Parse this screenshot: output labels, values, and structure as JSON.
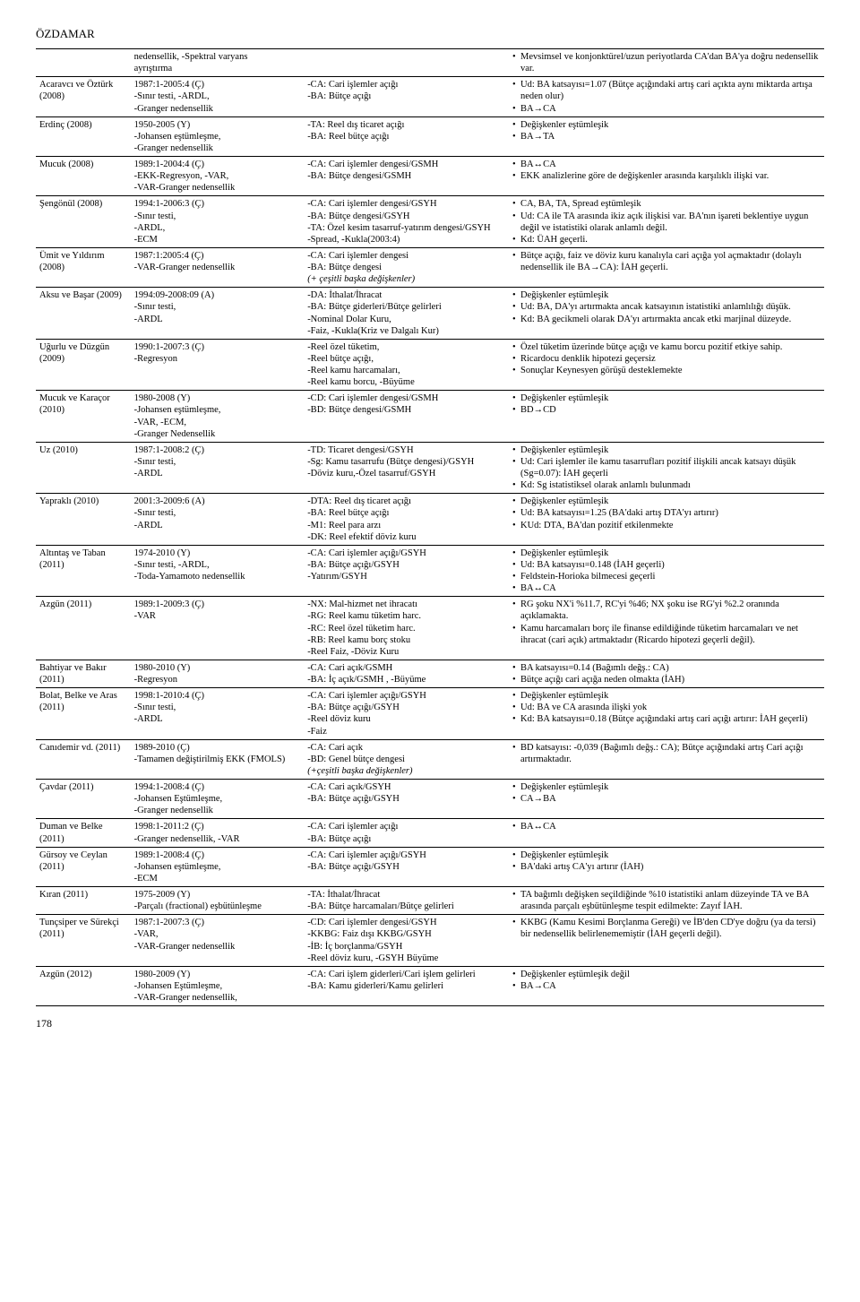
{
  "page": {
    "header": "ÖZDAMAR",
    "footer": "178"
  },
  "table": {
    "columns": {
      "author_w": "12%",
      "method_w": "22%",
      "vars_w": "26%",
      "find_w": "40%"
    },
    "rows": [
      {
        "author": "",
        "method": [
          "nedensellik, -Spektral varyans",
          "ayrıştırma"
        ],
        "vars": [],
        "findings": [
          "Mevsimsel ve konjonktürel/uzun periyotlarda CA'dan BA'ya doğru nedensellik var."
        ]
      },
      {
        "author": "Acaravcı ve Öztürk (2008)",
        "method": [
          "1987:1-2005:4 (Ç)",
          "-Sınır testi, -ARDL,",
          "-Granger nedensellik"
        ],
        "vars": [
          "-CA: Cari işlemler açığı",
          "-BA: Bütçe açığı"
        ],
        "findings": [
          "Ud: BA katsayısı=1.07 (Bütçe açığındaki artış cari açıkta aynı miktarda artışa neden olur)",
          "BA→CA"
        ]
      },
      {
        "author": "Erdinç (2008)",
        "method": [
          "1950-2005 (Y)",
          "-Johansen eştümleşme,",
          "-Granger nedensellik"
        ],
        "vars": [
          "-TA: Reel dış ticaret açığı",
          "-BA: Reel bütçe açığı"
        ],
        "findings": [
          "Değişkenler eştümleşik",
          "BA→TA"
        ]
      },
      {
        "author": "Mucuk (2008)",
        "method": [
          "1989:1-2004:4 (Ç)",
          "-EKK-Regresyon, -VAR,",
          "-VAR-Granger nedensellik"
        ],
        "vars": [
          "-CA: Cari işlemler dengesi/GSMH",
          "-BA: Bütçe dengesi/GSMH"
        ],
        "findings": [
          "BA↔CA",
          "EKK analizlerine göre de değişkenler arasında karşılıklı ilişki var."
        ]
      },
      {
        "author": "Şengönül (2008)",
        "method": [
          "1994:1-2006:3 (Ç)",
          "-Sınır testi,",
          "-ARDL,",
          "-ECM"
        ],
        "vars": [
          "-CA: Cari işlemler dengesi/GSYH",
          "-BA: Bütçe dengesi/GSYH",
          "-TA: Özel kesim tasarruf-yatırım dengesi/GSYH",
          "-Spread, -Kukla(2003:4)"
        ],
        "findings": [
          "CA, BA, TA, Spread eştümleşik",
          "Ud: CA ile TA arasında ikiz açık ilişkisi var. BA'nın işareti beklentiye uygun değil ve istatistiki olarak anlamlı değil.",
          "Kd: ÜAH geçerli."
        ]
      },
      {
        "author": "Ümit ve Yıldırım (2008)",
        "method": [
          "1987:1:2005:4 (Ç)",
          "-VAR-Granger nedensellik"
        ],
        "vars": [
          "-CA: Cari işlemler dengesi",
          "-BA: Bütçe dengesi",
          "(+ çeşitli başka değişkenler)"
        ],
        "findings": [
          "Bütçe açığı, faiz ve döviz kuru kanalıyla cari açığa yol açmaktadır (dolaylı nedensellik ile BA→CA): İAH geçerli."
        ]
      },
      {
        "author": "Aksu ve Başar (2009)",
        "method": [
          "1994:09-2008:09 (A)",
          "-Sınır testi,",
          "-ARDL"
        ],
        "vars": [
          "-DA: İthalat/İhracat",
          "-BA: Bütçe giderleri/Bütçe gelirleri",
          "-Nominal Dolar Kuru,",
          "-Faiz, -Kukla(Kriz ve Dalgalı Kur)"
        ],
        "findings": [
          "Değişkenler eştümleşik",
          "Ud: BA, DA'yı artırmakta ancak katsayının istatistiki anlamlılığı düşük.",
          "Kd: BA gecikmeli olarak DA'yı artırmakta ancak etki marjinal düzeyde."
        ]
      },
      {
        "author": "Uğurlu ve Düzgün (2009)",
        "method": [
          "1990:1-2007:3 (Ç)",
          "-Regresyon"
        ],
        "vars": [
          "-Reel özel tüketim,",
          "-Reel bütçe açığı,",
          "-Reel kamu harcamaları,",
          "-Reel kamu borcu, -Büyüme"
        ],
        "findings": [
          "Özel tüketim üzerinde bütçe açığı ve kamu borcu pozitif etkiye sahip.",
          "Ricardocu denklik hipotezi geçersiz",
          "Sonuçlar Keynesyen görüşü desteklemekte"
        ]
      },
      {
        "author": "Mucuk ve Karaçor (2010)",
        "method": [
          "1980-2008 (Y)",
          "-Johansen eştümleşme,",
          "-VAR, -ECM,",
          "-Granger Nedensellik"
        ],
        "vars": [
          "-CD: Cari işlemler dengesi/GSMH",
          "-BD: Bütçe dengesi/GSMH"
        ],
        "findings": [
          "Değişkenler eştümleşik",
          "BD→CD"
        ]
      },
      {
        "author": "Uz (2010)",
        "method": [
          "1987:1-2008:2 (Ç)",
          "-Sınır testi,",
          "-ARDL"
        ],
        "vars": [
          "-TD: Ticaret dengesi/GSYH",
          "-Sg: Kamu tasarrufu (Bütçe dengesi)/GSYH",
          "-Döviz kuru,-Özel tasarruf/GSYH"
        ],
        "findings": [
          "Değişkenler eştümleşik",
          "Ud: Cari işlemler ile kamu tasarrufları pozitif ilişkili ancak katsayı düşük (Sg=0.07): İAH geçerli",
          "Kd: Sg istatistiksel olarak anlamlı bulunmadı"
        ]
      },
      {
        "author": "Yapraklı (2010)",
        "method": [
          "2001:3-2009:6 (A)",
          "-Sınır testi,",
          "-ARDL"
        ],
        "vars": [
          "-DTA: Reel dış ticaret açığı",
          "-BA: Reel bütçe açığı",
          "-M1: Reel para arzı",
          "-DK: Reel efektif döviz kuru"
        ],
        "findings": [
          "Değişkenler eştümleşik",
          "Ud: BA katsayısı=1.25 (BA'daki artış DTA'yı artırır)",
          "KUd: DTA, BA'dan pozitif etkilenmekte"
        ]
      },
      {
        "author": "Altıntaş ve Taban (2011)",
        "method": [
          "1974-2010 (Y)",
          "-Sınır testi, -ARDL,",
          "-Toda-Yamamoto nedensellik"
        ],
        "vars": [
          "-CA: Cari işlemler açığı/GSYH",
          "-BA: Bütçe açığı/GSYH",
          "-Yatırım/GSYH"
        ],
        "findings": [
          "Değişkenler eştümleşik",
          "Ud: BA katsayısı=0.148 (İAH geçerli)",
          "Feldstein-Horioka bilmecesi geçerli",
          "BA↔CA"
        ]
      },
      {
        "author": "Azgün (2011)",
        "method": [
          "1989:1-2009:3 (Ç)",
          "-VAR"
        ],
        "vars": [
          "-NX: Mal-hizmet net ihracatı",
          "-RG: Reel kamu tüketim harc.",
          "-RC: Reel özel tüketim harc.",
          "-RB: Reel kamu borç stoku",
          "-Reel Faiz, -Döviz Kuru"
        ],
        "findings": [
          "RG şoku NX'i %11.7, RC'yi %46; NX şoku ise RG'yi %2.2 oranında açıklamakta.",
          "Kamu harcamaları borç ile finanse edildiğinde tüketim harcamaları ve net ihracat (cari açık) artmaktadır (Ricardo hipotezi geçerli değil)."
        ]
      },
      {
        "author": "Bahtiyar ve Bakır (2011)",
        "method": [
          "1980-2010 (Y)",
          "-Regresyon"
        ],
        "vars": [
          "-CA: Cari açık/GSMH",
          "-BA: İç açık/GSMH , -Büyüme"
        ],
        "findings": [
          "BA katsayısı=0.14 (Bağımlı değş.: CA)",
          "Bütçe açığı cari açığa neden olmakta (İAH)"
        ]
      },
      {
        "author": "Bolat, Belke ve Aras (2011)",
        "method": [
          "1998:1-2010:4 (Ç)",
          "-Sınır testi,",
          "-ARDL"
        ],
        "vars": [
          "-CA: Cari işlemler açığı/GSYH",
          "-BA: Bütçe açığı/GSYH",
          "-Reel döviz kuru",
          "-Faiz"
        ],
        "findings": [
          "Değişkenler eştümleşik",
          "Ud: BA ve CA arasında ilişki yok",
          "Kd: BA katsayısı=0.18 (Bütçe açığındaki artış cari açığı artırır: İAH geçerli)"
        ]
      },
      {
        "author": "Canıdemir vd. (2011)",
        "method": [
          "1989-2010 (Ç)",
          "-Tamamen değiştirilmiş EKK (FMOLS)"
        ],
        "vars": [
          "-CA: Cari açık",
          "-BD: Genel bütçe dengesi",
          "(+çeşitli başka değişkenler)"
        ],
        "findings": [
          "BD katsayısı: -0,039 (Bağımlı değş.: CA); Bütçe açığındaki artış Cari açığı artırmaktadır."
        ]
      },
      {
        "author": "Çavdar (2011)",
        "method": [
          "1994:1-2008:4 (Ç)",
          "-Johansen Eştümleşme,",
          "-Granger nedensellik"
        ],
        "vars": [
          "-CA: Cari açık/GSYH",
          "-BA: Bütçe açığı/GSYH"
        ],
        "findings": [
          "Değişkenler eştümleşik",
          "CA→BA"
        ]
      },
      {
        "author": "Duman ve Belke (2011)",
        "method": [
          "1998:1-2011:2 (Ç)",
          "-Granger nedensellik, -VAR"
        ],
        "vars": [
          "-CA: Cari işlemler açığı",
          "-BA: Bütçe açığı"
        ],
        "findings": [
          "BA↔CA"
        ]
      },
      {
        "author": "Gürsoy ve Ceylan (2011)",
        "method": [
          "1989:1-2008:4 (Ç)",
          "-Johansen eştümleşme,",
          "-ECM"
        ],
        "vars": [
          "-CA: Cari işlemler açığı/GSYH",
          "-BA: Bütçe açığı/GSYH"
        ],
        "findings": [
          "Değişkenler eştümleşik",
          "BA'daki artış CA'yı artırır (İAH)"
        ]
      },
      {
        "author": "Kıran (2011)",
        "method": [
          "1975-2009 (Y)",
          "-Parçalı (fractional) eşbütünleşme"
        ],
        "vars": [
          "-TA: İthalat/İhracat",
          "-BA: Bütçe harcamaları/Bütçe gelirleri"
        ],
        "findings": [
          "TA bağımlı değişken seçildiğinde %10 istatistiki anlam düzeyinde TA ve BA arasında parçalı eşbütünleşme tespit edilmekte: Zayıf İAH."
        ]
      },
      {
        "author": "Tunçsiper ve Sürekçi (2011)",
        "method": [
          "1987:1-2007:3 (Ç)",
          "-VAR,",
          "-VAR-Granger nedensellik"
        ],
        "vars": [
          "-CD: Cari işlemler dengesi/GSYH",
          "-KKBG: Faiz dışı KKBG/GSYH",
          "-İB: İç borçlanma/GSYH",
          "-Reel döviz kuru, -GSYH Büyüme"
        ],
        "findings": [
          "KKBG (Kamu Kesimi Borçlanma Gereği) ve İB'den CD'ye doğru (ya da tersi) bir nedensellik belirlenememiştir (İAH geçerli değil)."
        ]
      },
      {
        "author": "Azgün (2012)",
        "method": [
          "1980-2009 (Y)",
          "-Johansen Eştümleşme,",
          "-VAR-Granger nedensellik,"
        ],
        "vars": [
          "-CA: Cari işlem giderleri/Cari işlem gelirleri",
          "-BA: Kamu giderleri/Kamu gelirleri"
        ],
        "findings": [
          "Değişkenler eştümleşik değil",
          "BA→CA"
        ]
      }
    ]
  }
}
